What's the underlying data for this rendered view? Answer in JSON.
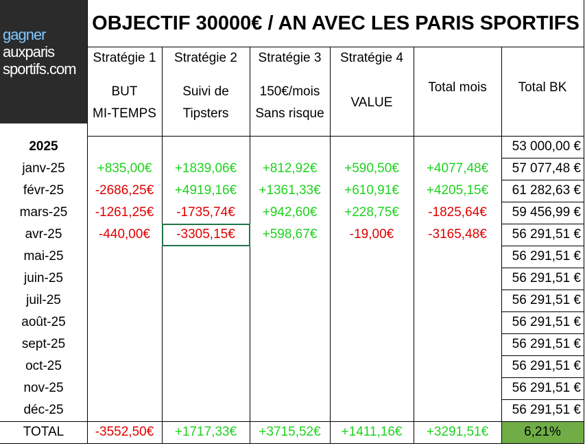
{
  "logo": {
    "lines": [
      "gagner",
      "auxparis",
      "sportifs.com"
    ]
  },
  "title": "OBJECTIF 30000€ / AN AVEC LES PARIS SPORTIFS",
  "table": {
    "strategies": [
      {
        "name": "Stratégie 1",
        "desc": [
          "BUT",
          "MI-TEMPS"
        ]
      },
      {
        "name": "Stratégie 2",
        "desc": [
          "Suivi de",
          "Tipsters"
        ]
      },
      {
        "name": "Stratégie 3",
        "desc": [
          "150€/mois",
          "Sans risque"
        ]
      },
      {
        "name": "Stratégie 4",
        "desc": [
          "VALUE"
        ]
      }
    ],
    "totals_headers": [
      "Total mois",
      "Total BK"
    ],
    "rows": [
      {
        "label": "2025",
        "cells": [
          null,
          null,
          null,
          null,
          null,
          "53 000,00 €"
        ]
      },
      {
        "label": "janv-25",
        "cells": [
          "+835,00€",
          "+1839,06€",
          "+812,92€",
          "+590,50€",
          "+4077,48€",
          "57 077,48 €"
        ]
      },
      {
        "label": "févr-25",
        "cells": [
          "-2686,25€",
          "+4919,16€",
          "+1361,33€",
          "+610,91€",
          "+4205,15€",
          "61 282,63 €"
        ]
      },
      {
        "label": "mars-25",
        "cells": [
          "-1261,25€",
          "-1735,74€",
          "+942,60€",
          "+228,75€",
          "-1825,64€",
          "59 456,99 €"
        ]
      },
      {
        "label": "avr-25",
        "cells": [
          "-440,00€",
          "-3305,15€",
          "+598,67€",
          "-19,00€",
          "-3165,48€",
          "56 291,51 €"
        ]
      },
      {
        "label": "mai-25",
        "cells": [
          null,
          null,
          null,
          null,
          null,
          "56 291,51 €"
        ]
      },
      {
        "label": "juin-25",
        "cells": [
          null,
          null,
          null,
          null,
          null,
          "56 291,51 €"
        ]
      },
      {
        "label": "juil-25",
        "cells": [
          null,
          null,
          null,
          null,
          null,
          "56 291,51 €"
        ]
      },
      {
        "label": "août-25",
        "cells": [
          null,
          null,
          null,
          null,
          null,
          "56 291,51 €"
        ]
      },
      {
        "label": "sept-25",
        "cells": [
          null,
          null,
          null,
          null,
          null,
          "56 291,51 €"
        ]
      },
      {
        "label": "oct-25",
        "cells": [
          null,
          null,
          null,
          null,
          null,
          "56 291,51 €"
        ]
      },
      {
        "label": "nov-25",
        "cells": [
          null,
          null,
          null,
          null,
          null,
          "56 291,51 €"
        ]
      },
      {
        "label": "déc-25",
        "cells": [
          null,
          null,
          null,
          null,
          null,
          "56 291,51 €"
        ]
      },
      {
        "label": "TOTAL",
        "cells": [
          "-3552,50€",
          "+1717,33€",
          "+3715,52€",
          "+1411,16€",
          "+3291,51€",
          "6,21%"
        ]
      }
    ]
  }
}
